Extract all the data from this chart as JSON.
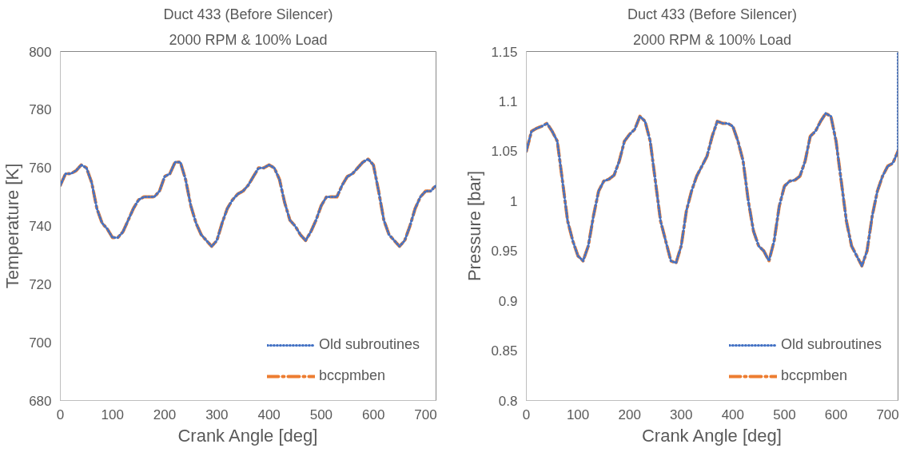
{
  "chart_data": [
    {
      "type": "line",
      "title": "Duct 433 (Before Silencer)",
      "subtitle": "2000 RPM & 100% Load",
      "xlabel": "Crank Angle [deg]",
      "ylabel": "Temperature [K]",
      "xlim": [
        0,
        720
      ],
      "xticks": [
        0,
        100,
        200,
        300,
        400,
        500,
        600,
        700
      ],
      "ylim": [
        680,
        800
      ],
      "yticks": [
        680,
        700,
        720,
        740,
        760,
        780,
        800
      ],
      "grid": false,
      "legend": "bottom right",
      "x": [
        0,
        10,
        20,
        30,
        40,
        50,
        60,
        70,
        80,
        90,
        100,
        110,
        120,
        130,
        140,
        150,
        160,
        170,
        180,
        190,
        200,
        210,
        220,
        230,
        240,
        250,
        260,
        270,
        280,
        290,
        300,
        310,
        320,
        330,
        340,
        350,
        360,
        370,
        380,
        390,
        400,
        410,
        420,
        430,
        440,
        450,
        460,
        470,
        480,
        490,
        500,
        510,
        520,
        530,
        540,
        550,
        560,
        570,
        580,
        590,
        600,
        610,
        620,
        630,
        640,
        650,
        660,
        670,
        680,
        690,
        700,
        710,
        720
      ],
      "series": [
        {
          "name": "Old subroutines",
          "color": "#4472c4",
          "line_style": "dotted",
          "values": [
            754,
            758,
            758,
            759,
            761,
            760,
            755,
            746,
            741,
            739,
            736,
            736,
            738,
            742,
            746,
            749,
            750,
            750,
            750,
            752,
            757,
            758,
            762,
            762,
            756,
            747,
            741,
            737,
            735,
            733,
            735,
            741,
            746,
            749,
            751,
            752,
            754,
            757,
            760,
            760,
            761,
            760,
            756,
            748,
            742,
            740,
            737,
            735,
            738,
            742,
            747,
            750,
            750,
            750,
            754,
            757,
            758,
            760,
            762,
            763,
            761,
            752,
            742,
            737,
            735,
            733,
            735,
            740,
            746,
            750,
            752,
            752,
            754
          ]
        },
        {
          "name": "bccpmben",
          "color": "#ed7d31",
          "line_style": "dashdot",
          "values": [
            754,
            758,
            758,
            759,
            761,
            760,
            755,
            746,
            741,
            739,
            736,
            736,
            738,
            742,
            746,
            749,
            750,
            750,
            750,
            752,
            757,
            758,
            762,
            762,
            756,
            747,
            741,
            737,
            735,
            733,
            735,
            741,
            746,
            749,
            751,
            752,
            754,
            757,
            760,
            760,
            761,
            760,
            756,
            748,
            742,
            740,
            737,
            735,
            738,
            742,
            747,
            750,
            750,
            750,
            754,
            757,
            758,
            760,
            762,
            763,
            761,
            752,
            742,
            737,
            735,
            733,
            735,
            740,
            746,
            750,
            752,
            752,
            754
          ]
        }
      ]
    },
    {
      "type": "line",
      "title": "Duct 433 (Before Silencer)",
      "subtitle": "2000 RPM & 100% Load",
      "xlabel": "Crank Angle [deg]",
      "ylabel": "Pressure [bar]",
      "xlim": [
        0,
        720
      ],
      "xticks": [
        0,
        100,
        200,
        300,
        400,
        500,
        600,
        700
      ],
      "ylim": [
        0.8,
        1.15
      ],
      "yticks": [
        0.8,
        0.85,
        0.9,
        0.95,
        1,
        1.05,
        1.1,
        1.15
      ],
      "grid": false,
      "legend": "bottom right",
      "x": [
        0,
        10,
        20,
        30,
        40,
        50,
        60,
        70,
        80,
        90,
        100,
        110,
        120,
        130,
        140,
        150,
        160,
        170,
        180,
        190,
        200,
        210,
        220,
        230,
        240,
        250,
        260,
        270,
        280,
        290,
        300,
        310,
        320,
        330,
        340,
        350,
        360,
        370,
        380,
        390,
        400,
        410,
        420,
        430,
        440,
        450,
        460,
        470,
        480,
        490,
        500,
        510,
        520,
        530,
        540,
        550,
        560,
        570,
        580,
        590,
        600,
        610,
        620,
        630,
        640,
        650,
        660,
        670,
        680,
        690,
        700,
        710,
        720
      ],
      "series": [
        {
          "name": "Old subroutines",
          "color": "#4472c4",
          "line_style": "dotted",
          "x": [
            0,
            10,
            20,
            30,
            40,
            50,
            60,
            70,
            80,
            90,
            100,
            110,
            120,
            130,
            140,
            150,
            160,
            170,
            180,
            190,
            200,
            210,
            220,
            230,
            240,
            250,
            260,
            270,
            280,
            290,
            300,
            310,
            320,
            330,
            340,
            350,
            360,
            370,
            380,
            390,
            400,
            410,
            420,
            430,
            440,
            450,
            460,
            470,
            480,
            490,
            500,
            510,
            520,
            530,
            540,
            550,
            560,
            570,
            580,
            590,
            600,
            610,
            620,
            630,
            640,
            650,
            660,
            670,
            680,
            690,
            700,
            710,
            720,
            720
          ],
          "values": [
            1.05,
            1.07,
            1.073,
            1.075,
            1.078,
            1.07,
            1.06,
            1.02,
            0.98,
            0.96,
            0.945,
            0.94,
            0.955,
            0.985,
            1.01,
            1.02,
            1.022,
            1.026,
            1.04,
            1.06,
            1.067,
            1.072,
            1.085,
            1.08,
            1.06,
            1.02,
            0.98,
            0.96,
            0.94,
            0.938,
            0.955,
            0.99,
            1.01,
            1.025,
            1.035,
            1.045,
            1.065,
            1.08,
            1.078,
            1.078,
            1.075,
            1.06,
            1.04,
            1.0,
            0.97,
            0.955,
            0.95,
            0.94,
            0.96,
            0.995,
            1.015,
            1.02,
            1.021,
            1.025,
            1.04,
            1.065,
            1.07,
            1.08,
            1.088,
            1.085,
            1.06,
            1.02,
            0.98,
            0.955,
            0.945,
            0.935,
            0.95,
            0.985,
            1.01,
            1.025,
            1.035,
            1.038,
            1.05,
            1.15
          ]
        },
        {
          "name": "bccpmben",
          "color": "#ed7d31",
          "line_style": "dashdot",
          "values": [
            1.05,
            1.07,
            1.073,
            1.075,
            1.078,
            1.07,
            1.06,
            1.02,
            0.98,
            0.96,
            0.945,
            0.94,
            0.955,
            0.985,
            1.01,
            1.02,
            1.022,
            1.026,
            1.04,
            1.06,
            1.067,
            1.072,
            1.085,
            1.08,
            1.06,
            1.02,
            0.98,
            0.96,
            0.94,
            0.938,
            0.955,
            0.99,
            1.01,
            1.025,
            1.035,
            1.045,
            1.065,
            1.08,
            1.078,
            1.078,
            1.075,
            1.06,
            1.04,
            1.0,
            0.97,
            0.955,
            0.95,
            0.94,
            0.96,
            0.995,
            1.015,
            1.02,
            1.021,
            1.025,
            1.04,
            1.065,
            1.07,
            1.08,
            1.088,
            1.085,
            1.06,
            1.02,
            0.98,
            0.955,
            0.945,
            0.935,
            0.95,
            0.985,
            1.01,
            1.025,
            1.035,
            1.038,
            1.05
          ]
        }
      ]
    }
  ]
}
